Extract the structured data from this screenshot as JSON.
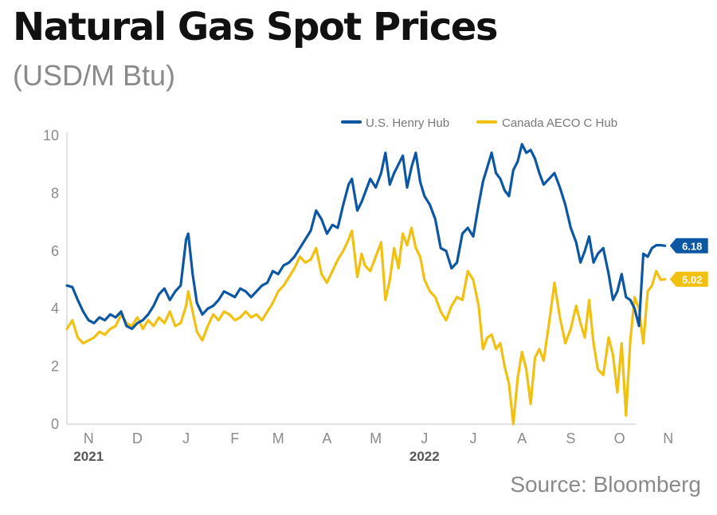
{
  "title": "Natural Gas Spot Prices",
  "subtitle": "(USD/M Btu)",
  "source": "Source: Bloomberg",
  "chart_data": {
    "type": "line",
    "ylim": [
      0,
      10
    ],
    "xlim": [
      0,
      54
    ],
    "yticks": [
      0,
      2,
      4,
      6,
      8,
      10
    ],
    "xticks": [
      {
        "label": "N",
        "x": 2
      },
      {
        "label": "D",
        "x": 6.5
      },
      {
        "label": "J",
        "x": 11
      },
      {
        "label": "F",
        "x": 15.5
      },
      {
        "label": "M",
        "x": 19.5
      },
      {
        "label": "A",
        "x": 24
      },
      {
        "label": "M",
        "x": 28.5
      },
      {
        "label": "J",
        "x": 33
      },
      {
        "label": "J",
        "x": 37.5
      },
      {
        "label": "A",
        "x": 42
      },
      {
        "label": "S",
        "x": 46.5
      },
      {
        "label": "O",
        "x": 51
      },
      {
        "label": "N",
        "x": 55.5
      }
    ],
    "years": [
      {
        "label": "2021",
        "x": 2
      },
      {
        "label": "2022",
        "x": 33
      }
    ],
    "legend_position": "top-right",
    "series": [
      {
        "name": "U.S. Henry Hub",
        "color": "#0b57a4",
        "end_label": "6.18",
        "points": [
          [
            0,
            4.8
          ],
          [
            0.5,
            4.75
          ],
          [
            1,
            4.3
          ],
          [
            1.5,
            3.9
          ],
          [
            2,
            3.6
          ],
          [
            2.5,
            3.5
          ],
          [
            3,
            3.7
          ],
          [
            3.5,
            3.6
          ],
          [
            4,
            3.8
          ],
          [
            4.5,
            3.7
          ],
          [
            5,
            3.9
          ],
          [
            5.5,
            3.4
          ],
          [
            6,
            3.3
          ],
          [
            6.5,
            3.5
          ],
          [
            7,
            3.6
          ],
          [
            7.5,
            3.8
          ],
          [
            8,
            4.1
          ],
          [
            8.5,
            4.5
          ],
          [
            9,
            4.7
          ],
          [
            9.5,
            4.3
          ],
          [
            10,
            4.6
          ],
          [
            10.5,
            4.8
          ],
          [
            11,
            6.4
          ],
          [
            11.2,
            6.6
          ],
          [
            11.6,
            5.2
          ],
          [
            12,
            4.2
          ],
          [
            12.5,
            3.8
          ],
          [
            13,
            4.0
          ],
          [
            13.5,
            4.1
          ],
          [
            14,
            4.3
          ],
          [
            14.5,
            4.6
          ],
          [
            15,
            4.5
          ],
          [
            15.5,
            4.4
          ],
          [
            16,
            4.7
          ],
          [
            16.5,
            4.6
          ],
          [
            17,
            4.4
          ],
          [
            17.5,
            4.6
          ],
          [
            18,
            4.8
          ],
          [
            18.5,
            4.9
          ],
          [
            19,
            5.3
          ],
          [
            19.5,
            5.2
          ],
          [
            20,
            5.5
          ],
          [
            20.5,
            5.6
          ],
          [
            21,
            5.8
          ],
          [
            21.5,
            6.1
          ],
          [
            22,
            6.4
          ],
          [
            22.5,
            6.7
          ],
          [
            23,
            7.4
          ],
          [
            23.5,
            7.1
          ],
          [
            24,
            6.6
          ],
          [
            24.5,
            6.9
          ],
          [
            25,
            6.8
          ],
          [
            25.5,
            7.6
          ],
          [
            26,
            8.3
          ],
          [
            26.3,
            8.5
          ],
          [
            26.8,
            7.4
          ],
          [
            27.2,
            7.7
          ],
          [
            27.5,
            8.0
          ],
          [
            28,
            8.5
          ],
          [
            28.5,
            8.2
          ],
          [
            29,
            8.7
          ],
          [
            29.4,
            9.4
          ],
          [
            29.8,
            8.3
          ],
          [
            30.2,
            8.7
          ],
          [
            30.6,
            9.0
          ],
          [
            31,
            9.3
          ],
          [
            31.4,
            8.2
          ],
          [
            31.8,
            8.9
          ],
          [
            32.2,
            9.4
          ],
          [
            32.6,
            8.4
          ],
          [
            33,
            7.9
          ],
          [
            33.5,
            7.6
          ],
          [
            34,
            7.1
          ],
          [
            34.5,
            6.1
          ],
          [
            35,
            6.0
          ],
          [
            35.5,
            5.4
          ],
          [
            36,
            5.6
          ],
          [
            36.5,
            6.6
          ],
          [
            37,
            6.8
          ],
          [
            37.5,
            6.5
          ],
          [
            38,
            7.6
          ],
          [
            38.4,
            8.4
          ],
          [
            38.8,
            8.9
          ],
          [
            39.2,
            9.4
          ],
          [
            39.6,
            8.7
          ],
          [
            40,
            8.5
          ],
          [
            40.4,
            8.1
          ],
          [
            40.8,
            7.9
          ],
          [
            41.2,
            8.8
          ],
          [
            41.6,
            9.1
          ],
          [
            42,
            9.7
          ],
          [
            42.4,
            9.4
          ],
          [
            42.8,
            9.5
          ],
          [
            43.2,
            9.2
          ],
          [
            43.6,
            8.7
          ],
          [
            44,
            8.3
          ],
          [
            44.5,
            8.5
          ],
          [
            45,
            8.7
          ],
          [
            45.5,
            8.2
          ],
          [
            46,
            7.6
          ],
          [
            46.5,
            6.8
          ],
          [
            47,
            6.3
          ],
          [
            47.4,
            5.6
          ],
          [
            47.8,
            6.0
          ],
          [
            48.2,
            6.5
          ],
          [
            48.6,
            5.6
          ],
          [
            49,
            5.9
          ],
          [
            49.5,
            6.1
          ],
          [
            50,
            5.2
          ],
          [
            50.4,
            4.3
          ],
          [
            50.8,
            4.6
          ],
          [
            51.2,
            5.2
          ],
          [
            51.6,
            4.4
          ],
          [
            52,
            4.3
          ],
          [
            52.4,
            4.0
          ],
          [
            52.8,
            3.4
          ],
          [
            53.2,
            5.9
          ],
          [
            53.6,
            5.8
          ],
          [
            54,
            6.1
          ],
          [
            54.4,
            6.2
          ],
          [
            54.8,
            6.2
          ],
          [
            55.2,
            6.18
          ]
        ]
      },
      {
        "name": "Canada AECO C Hub",
        "color": "#f2c010",
        "end_label": "5.02",
        "points": [
          [
            0,
            3.3
          ],
          [
            0.5,
            3.6
          ],
          [
            1,
            3.0
          ],
          [
            1.5,
            2.8
          ],
          [
            2,
            2.9
          ],
          [
            2.5,
            3.0
          ],
          [
            3,
            3.2
          ],
          [
            3.5,
            3.1
          ],
          [
            4,
            3.3
          ],
          [
            4.5,
            3.4
          ],
          [
            5,
            3.8
          ],
          [
            5.5,
            3.5
          ],
          [
            6,
            3.4
          ],
          [
            6.5,
            3.7
          ],
          [
            7,
            3.3
          ],
          [
            7.5,
            3.6
          ],
          [
            8,
            3.4
          ],
          [
            8.5,
            3.7
          ],
          [
            9,
            3.5
          ],
          [
            9.5,
            3.9
          ],
          [
            10,
            3.4
          ],
          [
            10.5,
            3.5
          ],
          [
            11,
            4.1
          ],
          [
            11.2,
            4.6
          ],
          [
            11.6,
            3.9
          ],
          [
            12,
            3.2
          ],
          [
            12.5,
            2.9
          ],
          [
            13,
            3.4
          ],
          [
            13.5,
            3.8
          ],
          [
            14,
            3.6
          ],
          [
            14.5,
            3.9
          ],
          [
            15,
            3.8
          ],
          [
            15.5,
            3.6
          ],
          [
            16,
            3.7
          ],
          [
            16.5,
            3.9
          ],
          [
            17,
            3.7
          ],
          [
            17.5,
            3.8
          ],
          [
            18,
            3.6
          ],
          [
            18.5,
            3.9
          ],
          [
            19,
            4.2
          ],
          [
            19.5,
            4.6
          ],
          [
            20,
            4.8
          ],
          [
            20.5,
            5.1
          ],
          [
            21,
            5.4
          ],
          [
            21.5,
            5.8
          ],
          [
            22,
            5.6
          ],
          [
            22.5,
            5.7
          ],
          [
            23,
            6.1
          ],
          [
            23.5,
            5.2
          ],
          [
            24,
            4.9
          ],
          [
            24.5,
            5.3
          ],
          [
            25,
            5.7
          ],
          [
            25.5,
            6.0
          ],
          [
            26,
            6.4
          ],
          [
            26.3,
            6.7
          ],
          [
            26.8,
            5.1
          ],
          [
            27.2,
            5.9
          ],
          [
            27.5,
            5.5
          ],
          [
            28,
            5.3
          ],
          [
            28.5,
            5.8
          ],
          [
            29,
            6.3
          ],
          [
            29.4,
            4.3
          ],
          [
            29.8,
            5.0
          ],
          [
            30.2,
            6.1
          ],
          [
            30.6,
            5.4
          ],
          [
            31,
            6.6
          ],
          [
            31.4,
            6.2
          ],
          [
            31.8,
            6.8
          ],
          [
            32.2,
            6.1
          ],
          [
            32.6,
            5.8
          ],
          [
            33,
            5.0
          ],
          [
            33.5,
            4.6
          ],
          [
            34,
            4.4
          ],
          [
            34.5,
            3.9
          ],
          [
            35,
            3.6
          ],
          [
            35.5,
            4.1
          ],
          [
            36,
            4.4
          ],
          [
            36.5,
            4.3
          ],
          [
            37,
            5.3
          ],
          [
            37.5,
            5.0
          ],
          [
            38,
            4.1
          ],
          [
            38.4,
            2.6
          ],
          [
            38.8,
            3.0
          ],
          [
            39.2,
            3.1
          ],
          [
            39.6,
            2.6
          ],
          [
            40,
            2.8
          ],
          [
            40.4,
            2.0
          ],
          [
            40.8,
            1.4
          ],
          [
            41.2,
            0.0
          ],
          [
            41.6,
            1.6
          ],
          [
            42,
            2.5
          ],
          [
            42.4,
            1.9
          ],
          [
            42.8,
            0.7
          ],
          [
            43.2,
            2.3
          ],
          [
            43.6,
            2.6
          ],
          [
            44,
            2.2
          ],
          [
            44.5,
            3.5
          ],
          [
            45,
            4.9
          ],
          [
            45.5,
            3.7
          ],
          [
            46,
            2.8
          ],
          [
            46.5,
            3.3
          ],
          [
            47,
            4.1
          ],
          [
            47.4,
            3.5
          ],
          [
            47.8,
            3.0
          ],
          [
            48.2,
            4.3
          ],
          [
            48.6,
            2.8
          ],
          [
            49,
            1.9
          ],
          [
            49.5,
            1.7
          ],
          [
            50,
            3.0
          ],
          [
            50.4,
            2.4
          ],
          [
            50.8,
            1.1
          ],
          [
            51.2,
            2.8
          ],
          [
            51.6,
            0.3
          ],
          [
            52,
            2.9
          ],
          [
            52.4,
            4.4
          ],
          [
            52.8,
            4.0
          ],
          [
            53.2,
            2.8
          ],
          [
            53.6,
            4.6
          ],
          [
            54,
            4.8
          ],
          [
            54.4,
            5.3
          ],
          [
            54.8,
            5.0
          ],
          [
            55.2,
            5.02
          ]
        ]
      }
    ]
  }
}
